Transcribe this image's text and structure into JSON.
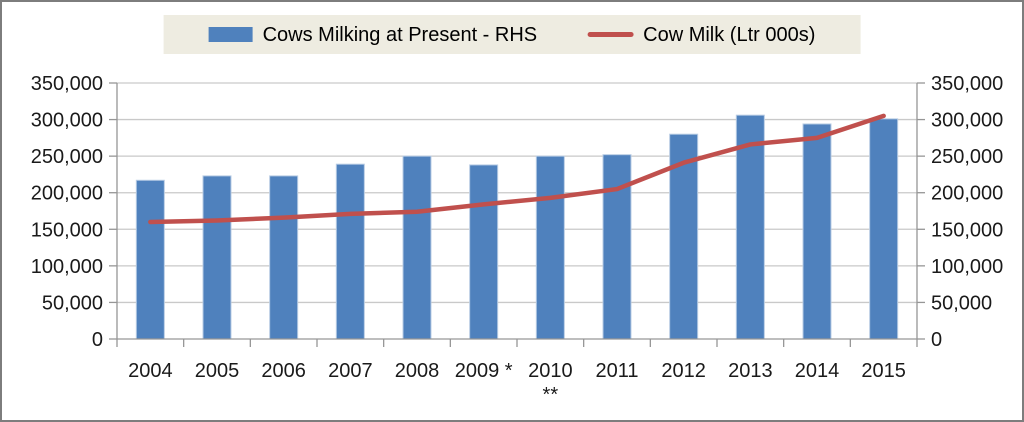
{
  "chart_data": {
    "type": "bar",
    "title": "",
    "categories": [
      "2004",
      "2005",
      "2006",
      "2007",
      "2008",
      "2009",
      "2010",
      "2011",
      "2012",
      "2013",
      "2014",
      "2015"
    ],
    "x_tick_labels": [
      "2004",
      "2005",
      "2006",
      "2007",
      "2008",
      "2009 *",
      "2010",
      "2011",
      "2012",
      "2013",
      "2014",
      "2015"
    ],
    "x_footnote_marker": {
      "category_index": 6,
      "text": "**"
    },
    "series": [
      {
        "name": "Cows Milking at Present - RHS",
        "type": "bar",
        "axis": "right",
        "color": "#4f81bd",
        "values": [
          217000,
          223000,
          223000,
          239000,
          250000,
          238000,
          250000,
          252000,
          280000,
          306000,
          294000,
          301000
        ]
      },
      {
        "name": "Cow Milk (Ltr 000s)",
        "type": "line",
        "axis": "left",
        "color": "#c0504d",
        "values": [
          160000,
          162000,
          166000,
          171000,
          174000,
          184000,
          193000,
          205000,
          241000,
          266000,
          275000,
          305000
        ]
      }
    ],
    "y_axis": {
      "min": 0,
      "max": 350000,
      "step": 50000,
      "tick_labels": [
        "0",
        "50,000",
        "100,000",
        "150,000",
        "200,000",
        "250,000",
        "300,000",
        "350,000"
      ],
      "sides": [
        "left",
        "right"
      ]
    },
    "grid": true,
    "legend_position": "top"
  },
  "legend": {
    "background_color": "#eeece1"
  },
  "colors": {
    "bar_fill": "#4f81bd",
    "bar_border": "#b8cce4",
    "line": "#c0504d",
    "gridline": "#c9c9c9",
    "axis": "#969696",
    "text": "#1a1a1a",
    "outer_border": "#7d7d7d"
  }
}
